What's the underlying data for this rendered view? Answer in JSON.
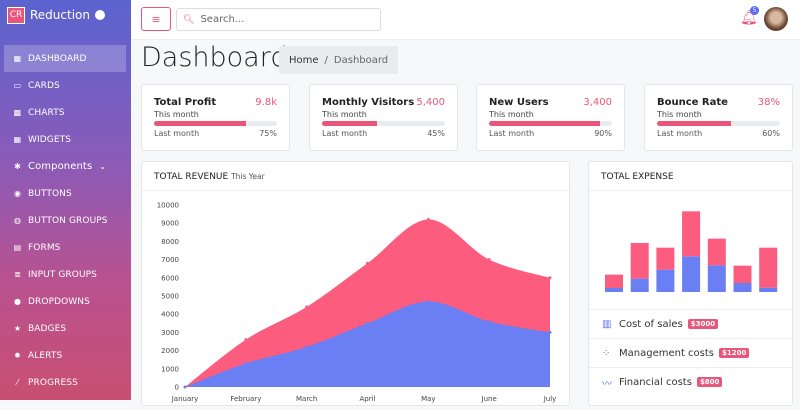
{
  "brand": {
    "logo": "CR",
    "name": "Reduction",
    "github_icon": "github-icon"
  },
  "sidebar": {
    "items": [
      {
        "label": "DASHBOARD",
        "icon": "▦",
        "active": true
      },
      {
        "label": "CARDS",
        "icon": "▭"
      },
      {
        "label": "CHARTS",
        "icon": "▩"
      },
      {
        "label": "WIDGETS",
        "icon": "▦"
      },
      {
        "label": "Components",
        "icon": "✱",
        "expandable": true
      },
      {
        "label": "BUTTONS",
        "icon": "◉"
      },
      {
        "label": "BUTTON GROUPS",
        "icon": "◍"
      },
      {
        "label": "FORMS",
        "icon": "▤"
      },
      {
        "label": "INPUT GROUPS",
        "icon": "≣"
      },
      {
        "label": "DROPDOWNS",
        "icon": "●"
      },
      {
        "label": "BADGES",
        "icon": "★"
      },
      {
        "label": "ALERTS",
        "icon": "✹"
      },
      {
        "label": "PROGRESS",
        "icon": "⁄"
      }
    ]
  },
  "header": {
    "search_placeholder": "Search...",
    "notification_count": "5"
  },
  "page": {
    "title": "Dashboard",
    "breadcrumb": {
      "home": "Home",
      "separator": "/",
      "current": "Dashboard"
    }
  },
  "stats": [
    {
      "title": "Total Profit",
      "value": "9.8k",
      "subtitle": "This month",
      "footer": "Last month",
      "percent_label": "75%",
      "progress": 75
    },
    {
      "title": "Monthly Visitors",
      "value": "5,400",
      "subtitle": "This month",
      "footer": "Last month",
      "percent_label": "45%",
      "progress": 45
    },
    {
      "title": "New Users",
      "value": "3,400",
      "subtitle": "This month",
      "footer": "Last month",
      "percent_label": "90%",
      "progress": 90
    },
    {
      "title": "Bounce Rate",
      "value": "38%",
      "subtitle": "This month",
      "footer": "Last month",
      "percent_label": "60%",
      "progress": 60
    }
  ],
  "revenue": {
    "title": "TOTAL REVENUE",
    "subtitle": "This Year"
  },
  "expense": {
    "title": "TOTAL EXPENSE",
    "items": [
      {
        "label": "Cost of sales",
        "badge": "$3000",
        "icon": "bar-chart-icon",
        "glyph": "▥"
      },
      {
        "label": "Management costs",
        "badge": "$1200",
        "icon": "bubble-icon",
        "glyph": "⁘"
      },
      {
        "label": "Financial costs",
        "badge": "$800",
        "icon": "trend-line-icon",
        "glyph": "〰"
      }
    ]
  },
  "colors": {
    "accent": "#e8577a",
    "blue": "#6b7ff5",
    "red": "#fc5c7d"
  },
  "chart_data": [
    {
      "type": "area",
      "categories": [
        "January",
        "February",
        "March",
        "April",
        "May",
        "June",
        "July"
      ],
      "yticks": [
        "0",
        "1000",
        "2000",
        "3000",
        "4000",
        "5000",
        "6000",
        "7000",
        "8000",
        "9000",
        "10000"
      ],
      "ylim": [
        0,
        10000
      ],
      "grid": false,
      "series": [
        {
          "values": [
            0,
            2600,
            4400,
            6800,
            9200,
            7000,
            6000
          ],
          "color": "#fc5c7d"
        },
        {
          "values": [
            0,
            1300,
            2200,
            3500,
            4700,
            3600,
            3000
          ],
          "color": "#6b7ff5"
        }
      ]
    },
    {
      "type": "bar",
      "stacked": true,
      "axes": false,
      "series": [
        {
          "values": [
            12,
            40,
            67,
            107,
            80,
            27,
            13
          ],
          "color": "#6b7ff5"
        },
        {
          "values": [
            40,
            107,
            66,
            135,
            80,
            52,
            120
          ],
          "color": "#fc5c7d"
        }
      ]
    }
  ]
}
